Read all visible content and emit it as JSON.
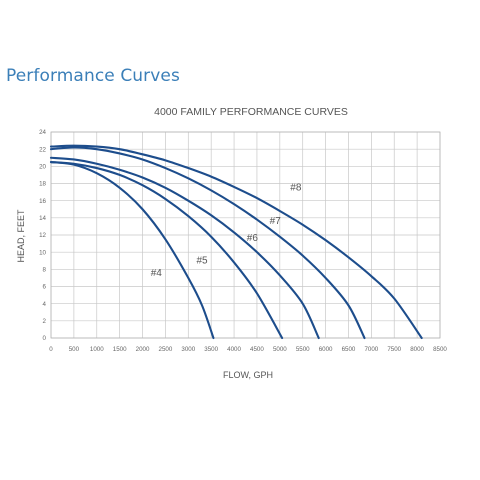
{
  "heading": "Performance Curves",
  "chart_data": {
    "type": "line",
    "title": "4000 FAMILY PERFORMANCE CURVES",
    "xlabel": "FLOW, GPH",
    "ylabel": "HEAD, FEET",
    "xlim": [
      0,
      8500
    ],
    "ylim": [
      0,
      24
    ],
    "xticks": [
      0,
      500,
      1000,
      1500,
      2000,
      2500,
      3000,
      3500,
      4000,
      4500,
      5000,
      5500,
      6000,
      6500,
      7000,
      7500,
      8000,
      8500
    ],
    "yticks": [
      0,
      2,
      4,
      6,
      8,
      10,
      12,
      14,
      16,
      18,
      20,
      22,
      24
    ],
    "grid": true,
    "line_color": "#1d4d8c",
    "series": [
      {
        "name": "#4",
        "points": [
          [
            0,
            20.5
          ],
          [
            500,
            20.2
          ],
          [
            1000,
            19.2
          ],
          [
            1500,
            17.5
          ],
          [
            2000,
            15.0
          ],
          [
            2500,
            11.5
          ],
          [
            3000,
            7.0
          ],
          [
            3300,
            3.8
          ],
          [
            3550,
            0
          ]
        ]
      },
      {
        "name": "#5",
        "points": [
          [
            0,
            20.5
          ],
          [
            500,
            20.3
          ],
          [
            1000,
            19.8
          ],
          [
            1500,
            19.0
          ],
          [
            2000,
            17.8
          ],
          [
            2500,
            16.2
          ],
          [
            3000,
            14.2
          ],
          [
            3500,
            11.8
          ],
          [
            4000,
            8.8
          ],
          [
            4500,
            5.2
          ],
          [
            5050,
            0
          ]
        ]
      },
      {
        "name": "#6",
        "points": [
          [
            0,
            21.0
          ],
          [
            500,
            20.8
          ],
          [
            1000,
            20.3
          ],
          [
            1500,
            19.6
          ],
          [
            2000,
            18.7
          ],
          [
            2500,
            17.5
          ],
          [
            3000,
            16.0
          ],
          [
            3500,
            14.3
          ],
          [
            4000,
            12.3
          ],
          [
            4500,
            10.0
          ],
          [
            5000,
            7.3
          ],
          [
            5500,
            4.0
          ],
          [
            5850,
            0
          ]
        ]
      },
      {
        "name": "#7",
        "points": [
          [
            0,
            22.0
          ],
          [
            500,
            22.2
          ],
          [
            1000,
            22.0
          ],
          [
            1500,
            21.5
          ],
          [
            2000,
            20.8
          ],
          [
            2500,
            19.8
          ],
          [
            3000,
            18.6
          ],
          [
            3500,
            17.2
          ],
          [
            4000,
            15.6
          ],
          [
            4500,
            13.8
          ],
          [
            5000,
            11.8
          ],
          [
            5500,
            9.6
          ],
          [
            6000,
            7.0
          ],
          [
            6500,
            3.8
          ],
          [
            6850,
            0
          ]
        ]
      },
      {
        "name": "#8",
        "points": [
          [
            0,
            22.3
          ],
          [
            500,
            22.4
          ],
          [
            1000,
            22.3
          ],
          [
            1500,
            22.0
          ],
          [
            2000,
            21.4
          ],
          [
            2500,
            20.7
          ],
          [
            3000,
            19.8
          ],
          [
            3500,
            18.8
          ],
          [
            4000,
            17.6
          ],
          [
            4500,
            16.3
          ],
          [
            5000,
            14.8
          ],
          [
            5500,
            13.2
          ],
          [
            6000,
            11.4
          ],
          [
            6500,
            9.4
          ],
          [
            7000,
            7.2
          ],
          [
            7500,
            4.6
          ],
          [
            8100,
            0
          ]
        ]
      }
    ],
    "annotations": [
      {
        "text": "#4",
        "x": 2300,
        "y": 7.2
      },
      {
        "text": "#5",
        "x": 3300,
        "y": 8.7
      },
      {
        "text": "#6",
        "x": 4400,
        "y": 11.3
      },
      {
        "text": "#7",
        "x": 4900,
        "y": 13.3
      },
      {
        "text": "#8",
        "x": 5350,
        "y": 17.2
      }
    ]
  }
}
